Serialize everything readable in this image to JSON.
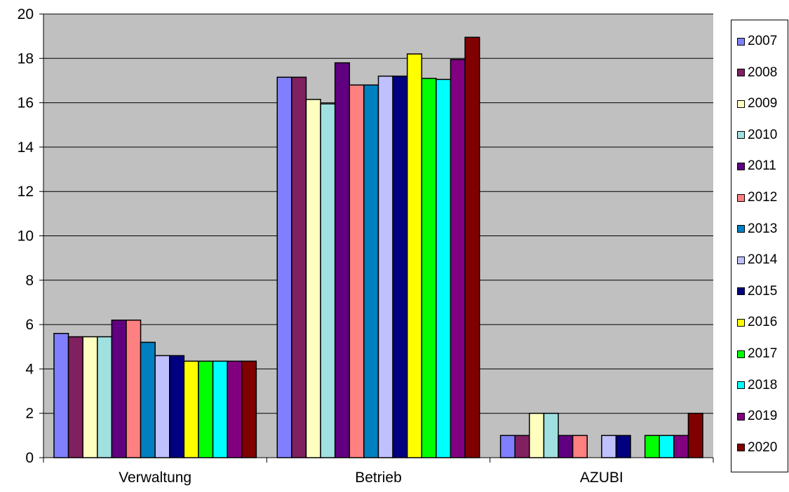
{
  "chart_data": {
    "type": "bar",
    "title": "",
    "xlabel": "",
    "ylabel": "",
    "ylim": [
      0,
      20
    ],
    "yticks": [
      "0",
      "2",
      "4",
      "6",
      "8",
      "10",
      "12",
      "14",
      "16",
      "18",
      "20"
    ],
    "categories": [
      "Verwaltung",
      "Betrieb",
      "AZUBI"
    ],
    "grid": true,
    "legend_position": "right",
    "plot_background": "#c0c0c0",
    "series": [
      {
        "name": "2007",
        "color": "#8080ff",
        "values": [
          5.6,
          17.15,
          1
        ]
      },
      {
        "name": "2008",
        "color": "#802060",
        "values": [
          5.45,
          17.15,
          1
        ]
      },
      {
        "name": "2009",
        "color": "#ffffc0",
        "values": [
          5.45,
          16.15,
          2
        ]
      },
      {
        "name": "2010",
        "color": "#a0e0e0",
        "values": [
          5.45,
          15.95,
          2
        ]
      },
      {
        "name": "2011",
        "color": "#600080",
        "values": [
          6.2,
          17.8,
          1
        ]
      },
      {
        "name": "2012",
        "color": "#ff8080",
        "values": [
          6.2,
          16.8,
          1
        ]
      },
      {
        "name": "2013",
        "color": "#0080c0",
        "values": [
          5.2,
          16.8,
          0
        ]
      },
      {
        "name": "2014",
        "color": "#c0c0ff",
        "values": [
          4.6,
          17.2,
          1
        ]
      },
      {
        "name": "2015",
        "color": "#000080",
        "values": [
          4.6,
          17.2,
          1
        ]
      },
      {
        "name": "2016",
        "color": "#ffff00",
        "values": [
          4.35,
          18.2,
          0
        ]
      },
      {
        "name": "2017",
        "color": "#00ff00",
        "values": [
          4.35,
          17.1,
          1
        ]
      },
      {
        "name": "2018",
        "color": "#00ffff",
        "values": [
          4.35,
          17.05,
          1
        ]
      },
      {
        "name": "2019",
        "color": "#800080",
        "values": [
          4.35,
          17.95,
          1
        ]
      },
      {
        "name": "2020",
        "color": "#800000",
        "values": [
          4.35,
          18.95,
          2
        ]
      }
    ]
  }
}
